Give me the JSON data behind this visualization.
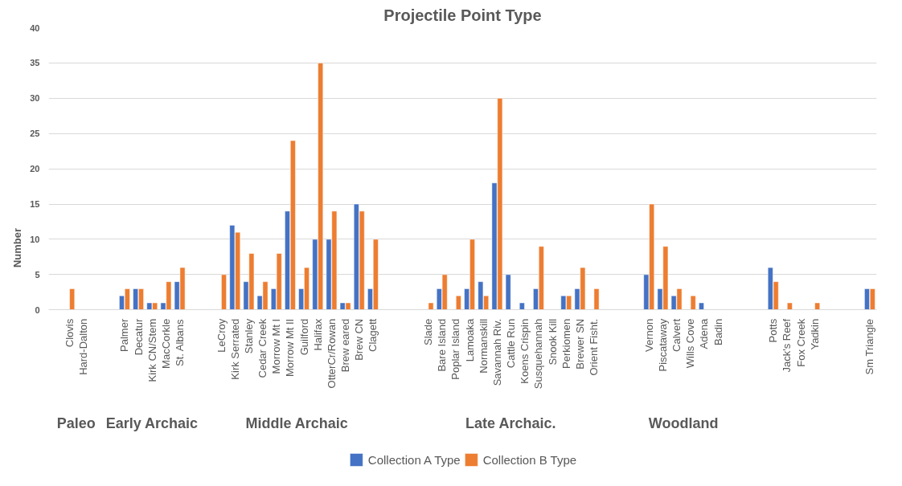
{
  "chart_data": {
    "type": "bar",
    "title": "Projectile Point Type",
    "ylabel": "Number",
    "categories": [
      null,
      "Clovis",
      "Hard-Dalton",
      null,
      null,
      "Palmer",
      "Decatur",
      "Kirk CN/Stem",
      "MacCorkle",
      "St. Albans",
      null,
      null,
      "LeCroy",
      "Kirk Serrated",
      "Stanley",
      "Cedar Creek",
      "Morrow Mt I",
      "Morrow Mt II",
      "Guilford",
      "Halifax",
      "OtterCr/Rowan",
      "Brew eared",
      "Brew CN",
      "Clagett",
      null,
      null,
      null,
      "Slade",
      "Bare Island",
      "Poplar Island",
      "Lamoaka",
      "Normanskill",
      "Savannah Riv.",
      "Cattle Run",
      "Koens Crispin",
      "Susquehannah",
      "Snook Kill",
      "Perkiomen",
      "Brewer SN",
      "Orient Fisht.",
      null,
      null,
      null,
      "Vernon",
      "Piscataway",
      "Calvert",
      "Wills Cove",
      "Adena",
      "Badin",
      null,
      null,
      null,
      "Potts",
      "Jack's Reef",
      "Fox Creek",
      "Yadkin",
      null,
      null,
      null,
      "Sm Triangle"
    ],
    "series": [
      {
        "name": "Collection A Type",
        "color": "#4472c4",
        "values": [
          null,
          null,
          null,
          null,
          null,
          2,
          3,
          1,
          1,
          4,
          null,
          null,
          null,
          12,
          4,
          2,
          3,
          14,
          3,
          10,
          10,
          1,
          15,
          3,
          null,
          null,
          null,
          null,
          3,
          null,
          3,
          4,
          18,
          5,
          1,
          3,
          null,
          2,
          3,
          null,
          null,
          null,
          null,
          5,
          3,
          2,
          null,
          1,
          null,
          null,
          null,
          null,
          6,
          null,
          null,
          null,
          null,
          null,
          null,
          3
        ]
      },
      {
        "name": "Collection B Type",
        "color": "#ed7d31",
        "values": [
          null,
          3,
          null,
          null,
          null,
          3,
          3,
          1,
          4,
          6,
          null,
          null,
          5,
          11,
          8,
          4,
          8,
          24,
          6,
          35,
          14,
          1,
          14,
          10,
          null,
          null,
          null,
          1,
          5,
          2,
          10,
          2,
          30,
          null,
          null,
          9,
          null,
          2,
          6,
          3,
          null,
          null,
          null,
          15,
          9,
          3,
          2,
          null,
          null,
          null,
          null,
          null,
          4,
          1,
          null,
          1,
          null,
          null,
          null,
          3
        ]
      }
    ],
    "ylim": [
      0,
      40
    ],
    "yticks": [
      0,
      5,
      10,
      15,
      20,
      25,
      30,
      35,
      40
    ],
    "grid": "y",
    "legend": "bottom",
    "annotations": [
      "Paleo",
      "Early Archaic",
      "Middle Archaic",
      "Late Archaic.",
      "Woodland"
    ]
  }
}
